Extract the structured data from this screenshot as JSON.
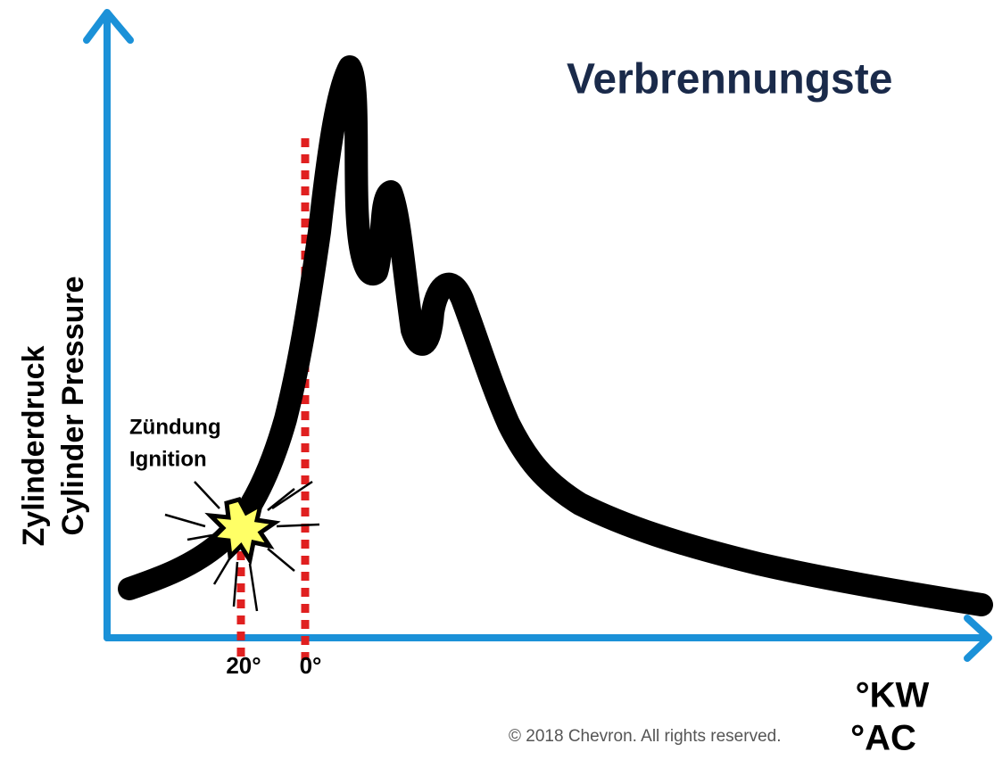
{
  "title": "Verbrennungste",
  "y_axis": {
    "line1": "Zylinderdruck",
    "line2": "Cylinder Pressure"
  },
  "annotation": {
    "line1": "Zündung",
    "line2": "Ignition"
  },
  "x_labels": [
    "20°",
    "0°"
  ],
  "x_units": [
    "°KW",
    "°AC"
  ],
  "footer": "© 2018 Chevron. All rights reserved."
}
